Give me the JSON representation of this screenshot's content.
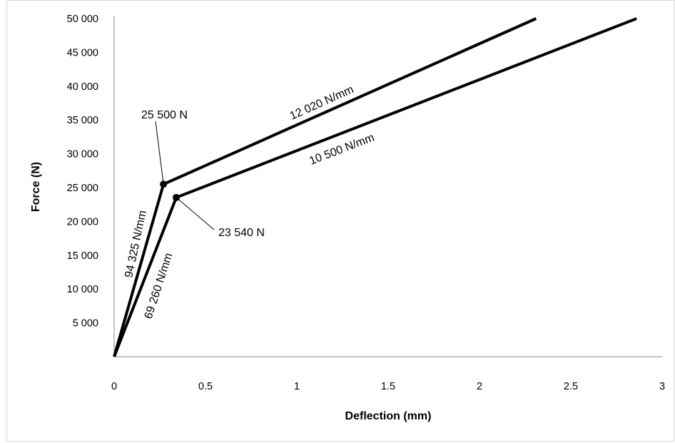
{
  "chart_data": {
    "type": "line",
    "title": "",
    "xlabel": "Deflection (mm)",
    "ylabel": "Force (N)",
    "xlim": [
      0,
      3
    ],
    "ylim": [
      0,
      50000
    ],
    "x_ticks": [
      "0",
      "0.5",
      "1",
      "1.5",
      "2",
      "2.5",
      "3"
    ],
    "y_ticks": [
      "5 000",
      "10 000",
      "15 000",
      "20 000",
      "25 000",
      "30 000",
      "35 000",
      "40 000",
      "45 000",
      "50 000"
    ],
    "grid": false,
    "legend": "none",
    "series": [
      {
        "points": [
          [
            0,
            0
          ],
          [
            0.27,
            25500
          ],
          [
            2.31,
            50000
          ]
        ],
        "color": "#000000"
      },
      {
        "points": [
          [
            0,
            0
          ],
          [
            0.34,
            23540
          ],
          [
            2.86,
            50000
          ]
        ],
        "color": "#000000"
      }
    ],
    "markers": [
      {
        "x": 0.27,
        "y": 25500
      },
      {
        "x": 0.34,
        "y": 23540
      }
    ],
    "annotations": {
      "upper_knee": "25 500  N",
      "lower_knee": "23 540  N",
      "upper_slope_1": "94 325 N/mm",
      "lower_slope_1": "69 260 N/mm",
      "upper_slope_2": "12 020 N/mm",
      "lower_slope_2": "10 500 N/mm"
    }
  }
}
